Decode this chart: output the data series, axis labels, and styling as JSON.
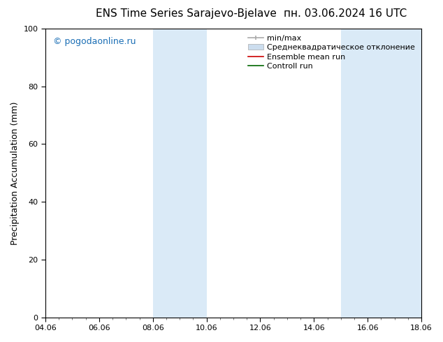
{
  "title_left": "ENS Time Series Sarajevo-Bjelave",
  "title_right": "пн. 03.06.2024 16 UTC",
  "ylabel": "Precipitation Accumulation (mm)",
  "watermark": "© pogodaonline.ru",
  "ylim": [
    0,
    100
  ],
  "yticks": [
    0,
    20,
    40,
    60,
    80,
    100
  ],
  "xtick_labels": [
    "04.06",
    "06.06",
    "08.06",
    "10.06",
    "12.06",
    "14.06",
    "16.06",
    "18.06"
  ],
  "xtick_positions": [
    0,
    2,
    4,
    6,
    8,
    10,
    12,
    14
  ],
  "xlim": [
    0,
    14
  ],
  "shaded_regions": [
    {
      "x_start": 4.0,
      "x_end": 6.0,
      "color": "#daeaf7"
    },
    {
      "x_start": 11.0,
      "x_end": 14.0,
      "color": "#daeaf7"
    }
  ],
  "legend_entries": [
    {
      "label": "min/max",
      "color": "#aaaaaa",
      "linewidth": 1.2,
      "linestyle": "-",
      "type": "errbar"
    },
    {
      "label": "Среднеквадратическое отклонение",
      "color": "#ccddee",
      "linewidth": 8,
      "linestyle": "-",
      "type": "rect"
    },
    {
      "label": "Ensemble mean run",
      "color": "#cc0000",
      "linewidth": 1.2,
      "linestyle": "-",
      "type": "line"
    },
    {
      "label": "Controll run",
      "color": "#006600",
      "linewidth": 1.2,
      "linestyle": "-",
      "type": "line"
    }
  ],
  "background_color": "#ffffff",
  "plot_bg_color": "#ffffff",
  "tick_fontsize": 8,
  "label_fontsize": 9,
  "title_fontsize": 11,
  "legend_fontsize": 8,
  "watermark_color": "#1a6eb5",
  "watermark_fontsize": 9,
  "spine_color": "#000000"
}
